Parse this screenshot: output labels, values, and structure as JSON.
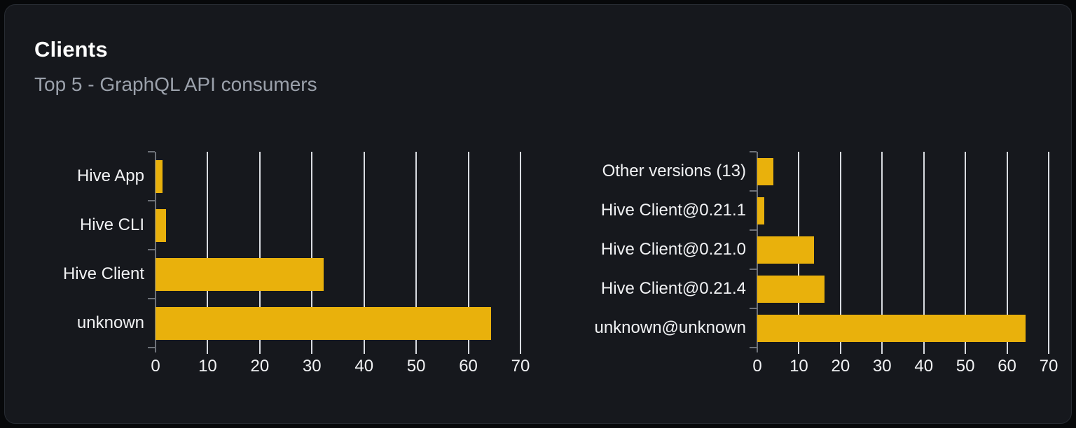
{
  "header": {
    "title": "Clients",
    "subtitle": "Top 5 - GraphQL API consumers"
  },
  "colors": {
    "page_bg": "#07080a",
    "card_bg": "#16181d",
    "card_border": "#282c33",
    "bar": "#e9b10c",
    "grid": "#d9dce1",
    "axis": "#6e7279",
    "title": "#ffffff",
    "subtitle": "#9ba1ab",
    "label": "#f1f2f4"
  },
  "chart_data": [
    {
      "type": "bar",
      "orientation": "horizontal",
      "name": "clients-by-name",
      "categories": [
        "Hive App",
        "Hive CLI",
        "Hive Client",
        "unknown"
      ],
      "values": [
        1.4,
        2.0,
        32.2,
        64.4
      ],
      "xlim": [
        0,
        70
      ],
      "xticks": [
        0,
        10,
        20,
        30,
        40,
        50,
        60,
        70
      ],
      "grid": "vertical",
      "legend": "none"
    },
    {
      "type": "bar",
      "orientation": "horizontal",
      "name": "clients-by-version",
      "categories": [
        "Other versions (13)",
        "Hive Client@0.21.1",
        "Hive Client@0.21.0",
        "Hive Client@0.21.4",
        "unknown@unknown"
      ],
      "values": [
        3.8,
        1.7,
        13.6,
        16.2,
        64.4
      ],
      "xlim": [
        0,
        70
      ],
      "xticks": [
        0,
        10,
        20,
        30,
        40,
        50,
        60,
        70
      ],
      "grid": "vertical",
      "legend": "none"
    }
  ]
}
